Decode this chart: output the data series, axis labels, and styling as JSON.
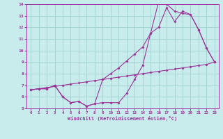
{
  "xlabel": "Windchill (Refroidissement éolien,°C)",
  "xlim": [
    -0.5,
    23.5
  ],
  "ylim": [
    5,
    14
  ],
  "xticks": [
    0,
    1,
    2,
    3,
    4,
    5,
    6,
    7,
    8,
    9,
    10,
    11,
    12,
    13,
    14,
    15,
    16,
    17,
    18,
    19,
    20,
    21,
    22,
    23
  ],
  "yticks": [
    5,
    6,
    7,
    8,
    9,
    10,
    11,
    12,
    13,
    14
  ],
  "bg_color": "#c8ecec",
  "line_color": "#993399",
  "grid_color": "#a0d0d0",
  "line1_x": [
    0,
    1,
    2,
    3,
    4,
    5,
    6,
    7,
    8,
    9,
    10,
    11,
    12,
    13,
    14,
    15,
    16,
    17,
    18,
    19,
    20,
    21,
    22,
    23
  ],
  "line1_y": [
    6.6,
    6.7,
    6.7,
    7.0,
    6.0,
    5.5,
    5.6,
    5.2,
    5.4,
    5.5,
    5.5,
    5.5,
    6.3,
    7.5,
    8.7,
    11.5,
    14.2,
    14.0,
    13.4,
    13.2,
    13.1,
    11.8,
    10.2,
    9.0
  ],
  "line2_x": [
    0,
    1,
    2,
    3,
    4,
    5,
    6,
    7,
    8,
    9,
    10,
    11,
    12,
    13,
    14,
    15,
    16,
    17,
    18,
    19,
    20,
    21,
    22,
    23
  ],
  "line2_y": [
    6.6,
    6.7,
    6.7,
    7.0,
    6.0,
    5.5,
    5.6,
    5.2,
    5.4,
    7.5,
    8.0,
    8.5,
    9.1,
    9.7,
    10.3,
    11.5,
    12.0,
    13.7,
    12.5,
    13.4,
    13.1,
    11.8,
    10.2,
    9.0
  ],
  "line3_x": [
    0,
    1,
    2,
    3,
    4,
    5,
    6,
    7,
    8,
    9,
    10,
    11,
    12,
    13,
    14,
    15,
    16,
    17,
    18,
    19,
    20,
    21,
    22,
    23
  ],
  "line3_y": [
    6.6,
    6.7,
    6.8,
    6.9,
    7.0,
    7.1,
    7.2,
    7.3,
    7.4,
    7.5,
    7.6,
    7.7,
    7.8,
    7.9,
    8.0,
    8.1,
    8.2,
    8.3,
    8.4,
    8.5,
    8.6,
    8.7,
    8.8,
    9.0
  ]
}
